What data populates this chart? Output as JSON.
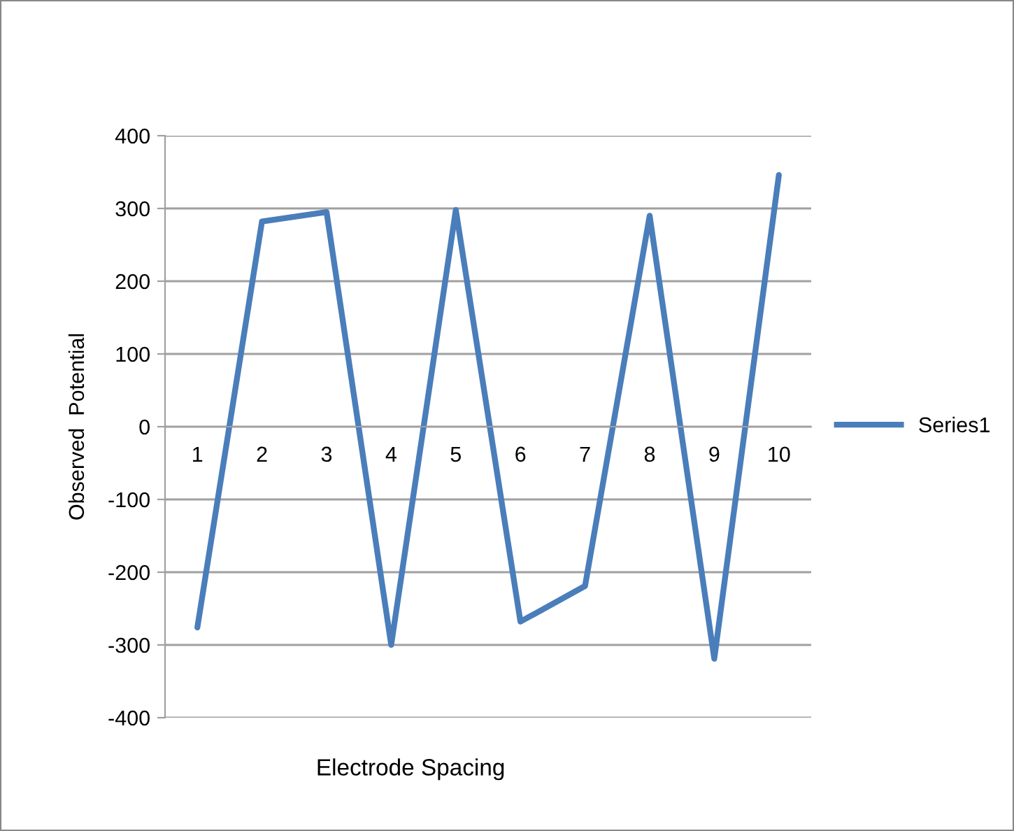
{
  "chart_data": {
    "type": "line",
    "xlabel": "Electrode Spacing",
    "ylabel": "Observed  Potential",
    "categories": [
      "1",
      "2",
      "3",
      "4",
      "5",
      "6",
      "7",
      "8",
      "9",
      "10"
    ],
    "series": [
      {
        "name": "Series1",
        "color": "#4a7ebb",
        "values": [
          -276,
          282,
          295,
          -300,
          298,
          -268,
          -219,
          290,
          -319,
          346
        ]
      }
    ],
    "ylim": [
      -400,
      400
    ],
    "yticks": [
      -400,
      -300,
      -200,
      -100,
      0,
      100,
      200,
      300,
      400
    ],
    "grid": "y",
    "legend": "right",
    "marker": "none",
    "line_style": "solid"
  }
}
